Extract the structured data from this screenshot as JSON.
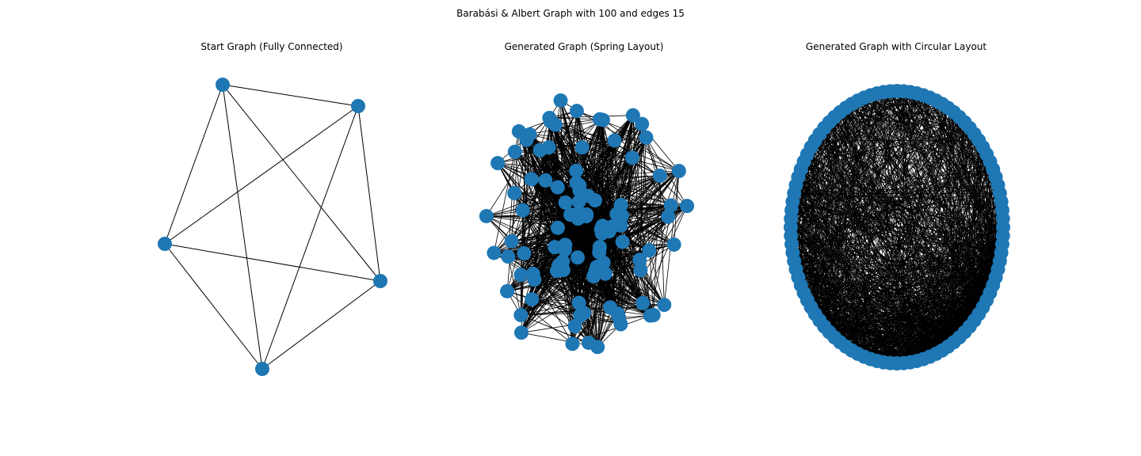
{
  "figure": {
    "title": "Barabási & Albert Graph with 100 and edges 15"
  },
  "panels": [
    {
      "title": "Start Graph (Fully Connected)"
    },
    {
      "title": "Generated Graph (Spring Layout)"
    },
    {
      "title": "Generated Graph with Circular Layout"
    }
  ],
  "graph": {
    "n": 100,
    "m": 15,
    "seed_nodes": 5
  },
  "colors": {
    "node": "#1f77b4",
    "edge": "#000000",
    "background": "#ffffff"
  }
}
